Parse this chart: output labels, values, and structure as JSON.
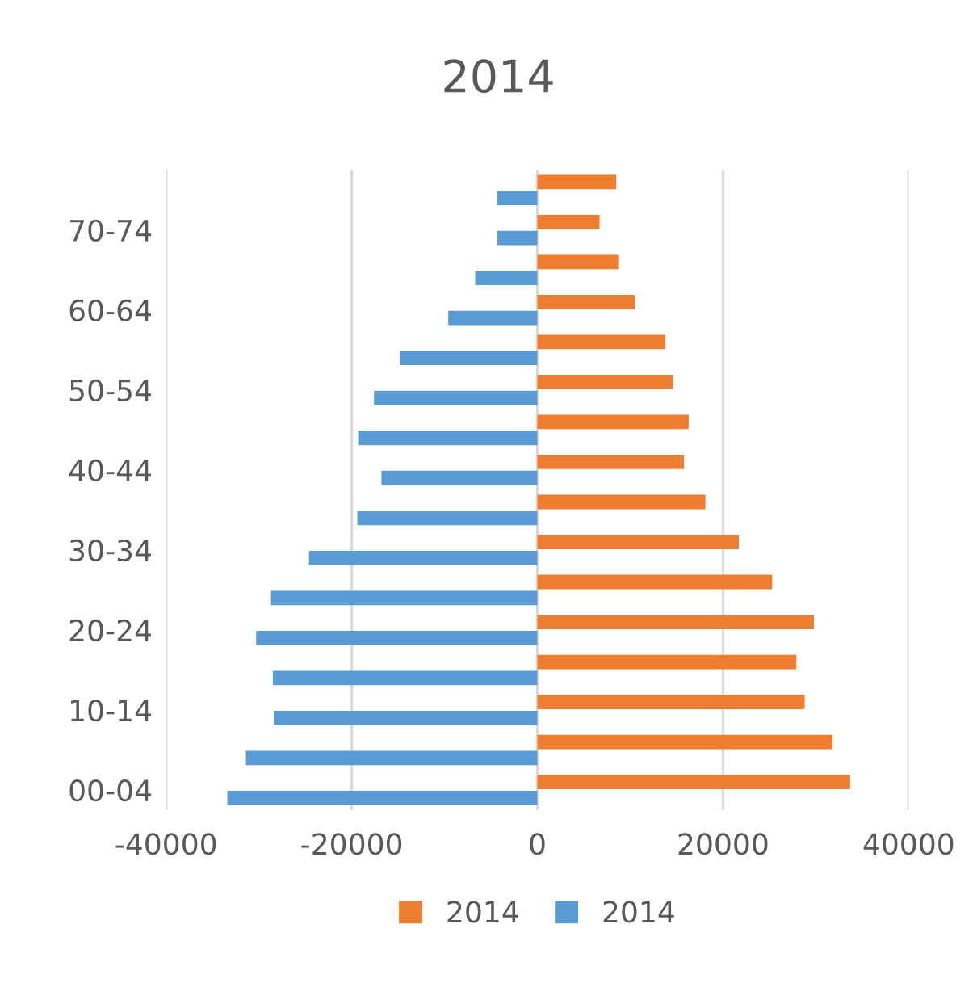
{
  "chart_data": {
    "type": "bar",
    "orientation": "horizontal",
    "title": "2014",
    "categories": [
      null,
      "70-74",
      null,
      "60-64",
      null,
      "50-54",
      null,
      "40-44",
      null,
      "30-34",
      null,
      "20-24",
      null,
      "10-14",
      null,
      "00-04"
    ],
    "series": [
      {
        "name": "2014",
        "color": "#ed7d31",
        "values": [
          8500,
          6700,
          8800,
          10500,
          13800,
          14600,
          16300,
          15800,
          18100,
          21700,
          25300,
          29800,
          27900,
          28800,
          31800,
          33700
        ]
      },
      {
        "name": "2014",
        "color": "#5b9bd5",
        "values": [
          -4300,
          -4300,
          -6700,
          -9600,
          -14800,
          -17600,
          -19300,
          -16800,
          -19400,
          -24600,
          -28700,
          -30300,
          -28500,
          -28400,
          -31400,
          -33400
        ]
      }
    ],
    "xlim": [
      -40000,
      40000
    ],
    "xticks": [
      -40000,
      -20000,
      0,
      20000,
      40000
    ],
    "grid": "x",
    "legend": "bottom"
  }
}
